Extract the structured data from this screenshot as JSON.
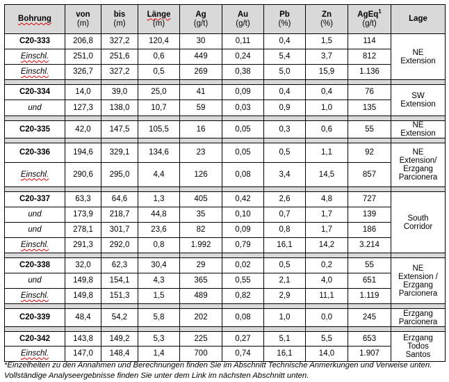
{
  "table": {
    "headers": [
      {
        "label": "Bohrung",
        "unit": ""
      },
      {
        "label": "von",
        "unit": "(m)"
      },
      {
        "label": "bis",
        "unit": "(m)"
      },
      {
        "label": "Länge",
        "unit": "(m)"
      },
      {
        "label": "Ag",
        "unit": "(g/t)"
      },
      {
        "label": "Au",
        "unit": "(g/t)"
      },
      {
        "label": "Pb",
        "unit": "(%)"
      },
      {
        "label": "Zn",
        "unit": "(%)"
      },
      {
        "label": "AgEq",
        "sup": "1",
        "unit": "(g/t)"
      },
      {
        "label": "Lage",
        "unit": ""
      }
    ],
    "groups": [
      {
        "lage": "NE\nExtension",
        "rows": [
          [
            "C20-333",
            "206,8",
            "327,2",
            "120,4",
            "30",
            "0,11",
            "0,4",
            "1,5",
            "114"
          ],
          [
            "Einschl.",
            "251,0",
            "251,6",
            "0,6",
            "449",
            "0,24",
            "5,4",
            "3,7",
            "812"
          ],
          [
            "Einschl.",
            "326,7",
            "327,2",
            "0,5",
            "269",
            "0,38",
            "5,0",
            "15,9",
            "1.136"
          ]
        ]
      },
      {
        "lage": "SW\nExtension",
        "rows": [
          [
            "C20-334",
            "14,0",
            "39,0",
            "25,0",
            "41",
            "0,09",
            "0,4",
            "0,4",
            "76"
          ],
          [
            "und",
            "127,3",
            "138,0",
            "10,7",
            "59",
            "0,03",
            "0,9",
            "1,0",
            "135"
          ]
        ]
      },
      {
        "lage": "NE\nExtension",
        "rows": [
          [
            "C20-335",
            "42,0",
            "147,5",
            "105,5",
            "16",
            "0,05",
            "0,3",
            "0,6",
            "55"
          ]
        ]
      },
      {
        "lage": "NE\nExtension/\nErzgang\nParcionera",
        "rows": [
          [
            "C20-336",
            "194,6",
            "329,1",
            "134,6",
            "23",
            "0,05",
            "0,5",
            "1,1",
            "92"
          ],
          [
            "Einschl.",
            "290,6",
            "295,0",
            "4,4",
            "126",
            "0,08",
            "3,4",
            "14,5",
            "857"
          ]
        ]
      },
      {
        "lage": "South\nCorridor",
        "rows": [
          [
            "C20-337",
            "63,3",
            "64,6",
            "1,3",
            "405",
            "0,42",
            "2,6",
            "4,8",
            "727"
          ],
          [
            "und",
            "173,9",
            "218,7",
            "44,8",
            "35",
            "0,10",
            "0,7",
            "1,7",
            "139"
          ],
          [
            "und",
            "278,1",
            "301,7",
            "23,6",
            "82",
            "0,09",
            "0,8",
            "1,7",
            "186"
          ],
          [
            "Einschl.",
            "291,3",
            "292,0",
            "0,8",
            "1.992",
            "0,79",
            "16,1",
            "14,2",
            "3.214"
          ]
        ]
      },
      {
        "lage": "NE\nExtension /\nErzgang\nParcionera",
        "rows": [
          [
            "C20-338",
            "32,0",
            "62,3",
            "30,4",
            "29",
            "0,02",
            "0,5",
            "0,2",
            "55"
          ],
          [
            "und",
            "149,8",
            "154,1",
            "4,3",
            "365",
            "0,55",
            "2,1",
            "4,0",
            "651"
          ],
          [
            "Einschl.",
            "149,8",
            "151,3",
            "1,5",
            "489",
            "0,82",
            "2,9",
            "11,1",
            "1.119"
          ]
        ]
      },
      {
        "lage": "Erzgang\nParcionera",
        "rows": [
          [
            "C20-339",
            "48,4",
            "54,2",
            "5,8",
            "202",
            "0,08",
            "1,0",
            "0,0",
            "245"
          ]
        ]
      },
      {
        "lage": "Erzgang\nTodos\nSantos",
        "rows": [
          [
            "C20-342",
            "143,8",
            "149,2",
            "5,3",
            "225",
            "0,27",
            "5,1",
            "5,5",
            "653"
          ],
          [
            "Einschl.",
            "147,0",
            "148,4",
            "1,4",
            "700",
            "0,74",
            "16,1",
            "14,0",
            "1.907"
          ]
        ]
      }
    ]
  },
  "footnote": "*Einzelheiten zu den Annahmen und Berechnungen finden Sie im Abschnitt Technische Anmerkungen und Verweise unten. Vollständige Analyseergebnisse finden Sie unter dem Link im nächsten Abschnitt unten.",
  "colors": {
    "header_bg": "#d9d9d9",
    "spellcheck_underline": "#e00000"
  }
}
